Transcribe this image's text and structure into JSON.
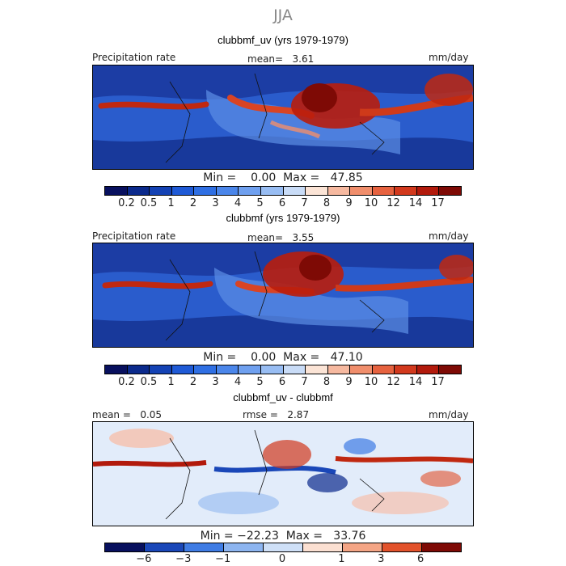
{
  "figure": {
    "season": "JJA"
  },
  "panels": [
    {
      "title": "clubbmf_uv (yrs 1979-1979)",
      "left_label": "Precipitation rate",
      "mean_text": "mean=   3.61",
      "units": "mm/day",
      "minmax": "Min =    0.00  Max =   47.85",
      "colorbar_labels": [
        "0.2",
        "0.5",
        "1",
        "2",
        "3",
        "4",
        "5",
        "6",
        "7",
        "8",
        "9",
        "10",
        "12",
        "14",
        "17"
      ]
    },
    {
      "title": "clubbmf (yrs 1979-1979)",
      "left_label": "Precipitation rate",
      "mean_text": "mean=   3.55",
      "units": "mm/day",
      "minmax": "Min =    0.00  Max =   47.10",
      "colorbar_labels": [
        "0.2",
        "0.5",
        "1",
        "2",
        "3",
        "4",
        "5",
        "6",
        "7",
        "8",
        "9",
        "10",
        "12",
        "14",
        "17"
      ]
    },
    {
      "title": "clubbmf_uv - clubbmf",
      "left_label": "mean =   0.05",
      "mean_text": "rmse =   2.87",
      "units": "mm/day",
      "minmax": "Min = −22.23  Max =   33.76",
      "colorbar_labels": [
        "−6",
        "−3",
        "−1",
        "0",
        "1",
        "3",
        "6"
      ]
    }
  ],
  "chart_data": [
    {
      "type": "heatmap",
      "title": "clubbmf_uv (yrs 1979-1979)",
      "variable": "Precipitation rate",
      "units": "mm/day",
      "mean": 3.61,
      "min": 0.0,
      "max": 47.85,
      "colorbar_levels": [
        0.2,
        0.5,
        1,
        2,
        3,
        4,
        5,
        6,
        7,
        8,
        9,
        10,
        12,
        14,
        17
      ]
    },
    {
      "type": "heatmap",
      "title": "clubbmf (yrs 1979-1979)",
      "variable": "Precipitation rate",
      "units": "mm/day",
      "mean": 3.55,
      "min": 0.0,
      "max": 47.1,
      "colorbar_levels": [
        0.2,
        0.5,
        1,
        2,
        3,
        4,
        5,
        6,
        7,
        8,
        9,
        10,
        12,
        14,
        17
      ]
    },
    {
      "type": "heatmap",
      "title": "clubbmf_uv - clubbmf",
      "units": "mm/day",
      "mean": 0.05,
      "rmse": 2.87,
      "min": -22.23,
      "max": 33.76,
      "colorbar_levels": [
        -6,
        -3,
        -1,
        0,
        1,
        3,
        6
      ]
    }
  ],
  "colors": {
    "precip_scale": [
      "#08105e",
      "#0b2a8c",
      "#1442b4",
      "#1f5ad6",
      "#2f6fe3",
      "#4b86ea",
      "#6fa0ef",
      "#98bdf3",
      "#c9dcf7",
      "#fbe4d6",
      "#f6b9a0",
      "#f08e6c",
      "#e6623f",
      "#d2391d",
      "#b21a0c",
      "#7e0a05"
    ],
    "diff_scale": [
      "#08105e",
      "#1a47b8",
      "#3f7ce4",
      "#8db5f0",
      "#cfe0f7",
      "#fbe0d2",
      "#f4a585",
      "#e2522b",
      "#7e0a05"
    ]
  }
}
